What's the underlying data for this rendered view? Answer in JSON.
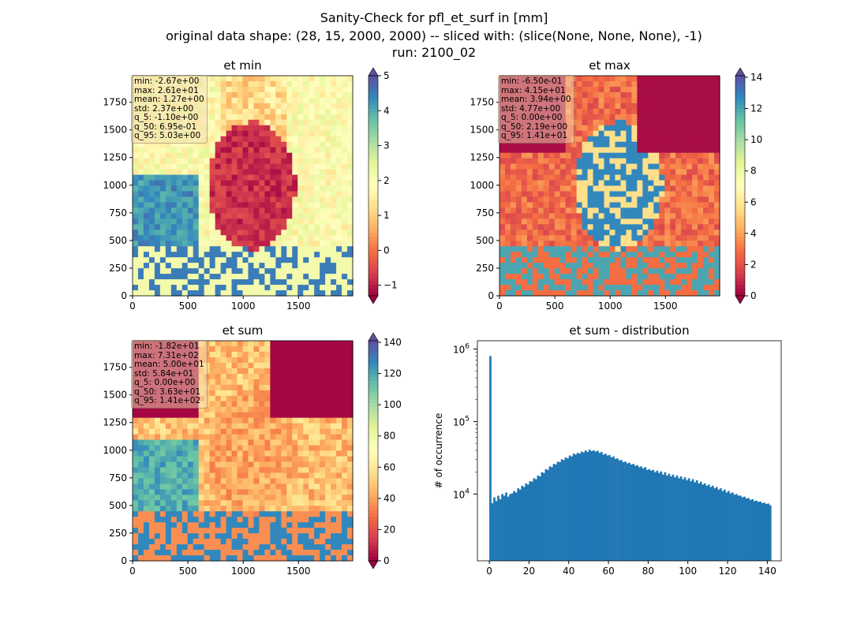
{
  "figure": {
    "title_lines": [
      "Sanity-Check for pfl_et_surf in [mm]",
      "original data shape: (28, 15, 2000, 2000) -- sliced with: (slice(None, None, None), -1)",
      "run: 2100_02"
    ]
  },
  "colormap": "Spectral",
  "chart_data": [
    {
      "type": "heatmap",
      "title": "et min",
      "xticks": [
        0,
        500,
        1000,
        1500
      ],
      "yticks": [
        0,
        250,
        500,
        750,
        1000,
        1250,
        1500,
        1750
      ],
      "colorbar": {
        "ticks": [
          -1,
          0,
          1,
          2,
          3,
          4,
          5
        ],
        "range": [
          -1.3,
          5.0
        ],
        "extend": "both"
      },
      "stats": [
        "min: -2.67e+00",
        "max: 2.61e+01",
        "mean: 1.27e+00",
        "std: 2.37e+00",
        "q_5: -1.10e+00",
        "q_50: 6.95e-01",
        "q_95: 5.03e+00"
      ]
    },
    {
      "type": "heatmap",
      "title": "et max",
      "xticks": [
        0,
        500,
        1000,
        1500
      ],
      "yticks": [
        0,
        250,
        500,
        750,
        1000,
        1250,
        1500,
        1750
      ],
      "colorbar": {
        "ticks": [
          0,
          2,
          4,
          6,
          8,
          10,
          12,
          14
        ],
        "range": [
          0,
          14.1
        ],
        "extend": "both"
      },
      "stats": [
        "min: -6.50e-01",
        "max: 4.15e+01",
        "mean: 3.94e+00",
        "std: 4.77e+00",
        "q_5: 0.00e+00",
        "q_50: 2.19e+00",
        "q_95: 1.41e+01"
      ]
    },
    {
      "type": "heatmap",
      "title": "et sum",
      "xticks": [
        0,
        500,
        1000,
        1500
      ],
      "yticks": [
        0,
        250,
        500,
        750,
        1000,
        1250,
        1500,
        1750
      ],
      "colorbar": {
        "ticks": [
          0,
          20,
          40,
          60,
          80,
          100,
          120,
          140
        ],
        "range": [
          0,
          141
        ],
        "extend": "both"
      },
      "stats": [
        "min: -1.82e+01",
        "max: 7.31e+02",
        "mean: 5.00e+01",
        "std: 5.84e+01",
        "q_5: 0.00e+00",
        "q_50: 3.63e+01",
        "q_95: 1.41e+02"
      ]
    },
    {
      "type": "bar",
      "title": "et sum - distribution",
      "ylabel": "# of occurrence",
      "yscale": "log",
      "xticks": [
        0,
        20,
        40,
        60,
        80,
        100,
        120,
        140
      ],
      "yticks": [
        {
          "base": "10",
          "exp": "4",
          "value": 10000
        },
        {
          "base": "10",
          "exp": "5",
          "value": 100000
        },
        {
          "base": "10",
          "exp": "6",
          "value": 1000000
        }
      ],
      "xlim": [
        -6,
        147
      ],
      "ylim": [
        1200,
        1300000
      ],
      "bin_width": 1,
      "bin_start": 0,
      "color": "#1f77b4",
      "values": [
        800000,
        7500,
        9000,
        8000,
        9500,
        8500,
        10000,
        9500,
        10500,
        9200,
        10000,
        10200,
        11000,
        10500,
        12000,
        11500,
        13000,
        12500,
        14000,
        13500,
        15000,
        14800,
        16500,
        16000,
        18000,
        17500,
        20000,
        19500,
        22000,
        21500,
        24000,
        23500,
        26000,
        25500,
        28000,
        27500,
        30000,
        29500,
        32000,
        31000,
        34000,
        33000,
        36000,
        35000,
        37000,
        36000,
        38500,
        37500,
        40000,
        38000,
        41000,
        39000,
        40000,
        38500,
        39500,
        37000,
        38000,
        35000,
        36000,
        34000,
        34500,
        32000,
        33000,
        30500,
        31000,
        29000,
        29500,
        27500,
        28000,
        26500,
        27000,
        25500,
        26000,
        24500,
        25000,
        23500,
        24000,
        22500,
        23500,
        21500,
        22000,
        21000,
        21500,
        20000,
        21000,
        19500,
        20500,
        18500,
        20000,
        18000,
        19000,
        17500,
        18500,
        17000,
        18000,
        16500,
        17500,
        16000,
        17000,
        15500,
        16500,
        15000,
        16000,
        14500,
        15500,
        14000,
        14800,
        13500,
        14000,
        13000,
        13500,
        12500,
        13000,
        12000,
        12500,
        11500,
        12000,
        11000,
        11500,
        10500,
        11000,
        10200,
        10500,
        9800,
        10000,
        9500,
        9500,
        9000,
        9200,
        8700,
        8800,
        8300,
        8500,
        8000,
        8100,
        7800,
        7900,
        7500,
        7600,
        7300,
        7400,
        7000
      ],
      "heights": [
        800000,
        7500,
        9000,
        8000,
        9500,
        8500,
        10000,
        9500,
        10500,
        9200,
        10000,
        10200,
        11000,
        10500,
        12000,
        11500,
        13000,
        12500,
        14000,
        13500,
        15000,
        14800,
        16500,
        16000,
        18000,
        17500,
        20000,
        19500,
        22000,
        21500,
        24000,
        23500,
        26000,
        25500,
        28000,
        27500,
        30000,
        29500,
        32000,
        31000,
        34000,
        33000,
        36000,
        35000,
        37000,
        36000,
        38500,
        37500,
        40000,
        38000,
        41000,
        39000,
        40000,
        38500,
        39500,
        37000,
        38000,
        35000,
        36000,
        34000,
        34500,
        32000,
        33000,
        30500,
        31000,
        29000,
        29500,
        27500,
        28000,
        26500,
        27000,
        25500,
        26000,
        24500,
        25000,
        23500,
        24000,
        22500,
        23500,
        21500,
        22000,
        21000,
        21500,
        20000,
        21000,
        19500,
        20500,
        18500,
        20000,
        18000,
        19000,
        17500,
        18500,
        17000,
        18000,
        16500,
        17500,
        16000,
        17000,
        15500,
        16500,
        15000,
        16000,
        14500,
        15500,
        14000,
        14800,
        13500,
        14000,
        13000,
        13500,
        12500,
        13000,
        12000,
        12500,
        11500,
        12000,
        11000,
        11500,
        10500,
        11000,
        10200,
        10500,
        9800,
        10000,
        9500,
        9500,
        9000,
        9200,
        8700,
        8800,
        8300,
        8500,
        8000,
        8100,
        7800,
        7900,
        7500,
        7600,
        7300,
        7400,
        7000
      ]
    }
  ]
}
